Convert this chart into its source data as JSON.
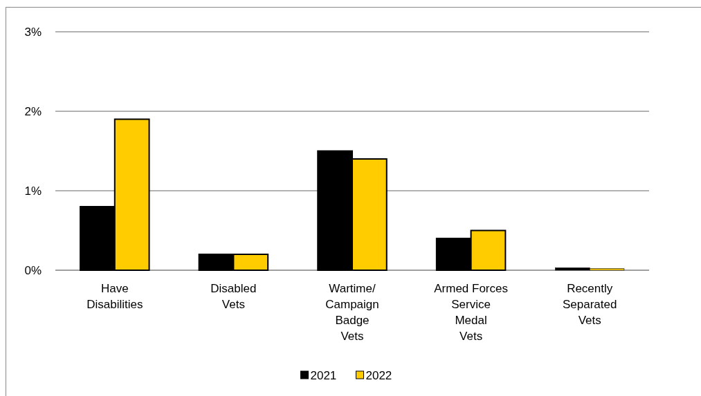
{
  "chart_data": {
    "type": "bar",
    "categories": [
      "Have\nDisabilities",
      "Disabled\nVets",
      "Wartime/\nCampaign\nBadge\nVets",
      "Armed Forces\nService\nMedal\nVets",
      "Recently\nSeparated\nVets"
    ],
    "series": [
      {
        "name": "2021",
        "color": "#000000",
        "values": [
          0.8,
          0.2,
          1.5,
          0.4,
          0.03
        ]
      },
      {
        "name": "2022",
        "color": "#ffcc00",
        "values": [
          1.9,
          0.2,
          1.4,
          0.5,
          0.02
        ]
      }
    ],
    "ylim": [
      0,
      3
    ],
    "yticks": [
      {
        "value": 0,
        "label": "0%"
      },
      {
        "value": 1,
        "label": "1%"
      },
      {
        "value": 2,
        "label": "2%"
      },
      {
        "value": 3,
        "label": "3%"
      }
    ],
    "grid": "y",
    "legend": "bottom"
  }
}
